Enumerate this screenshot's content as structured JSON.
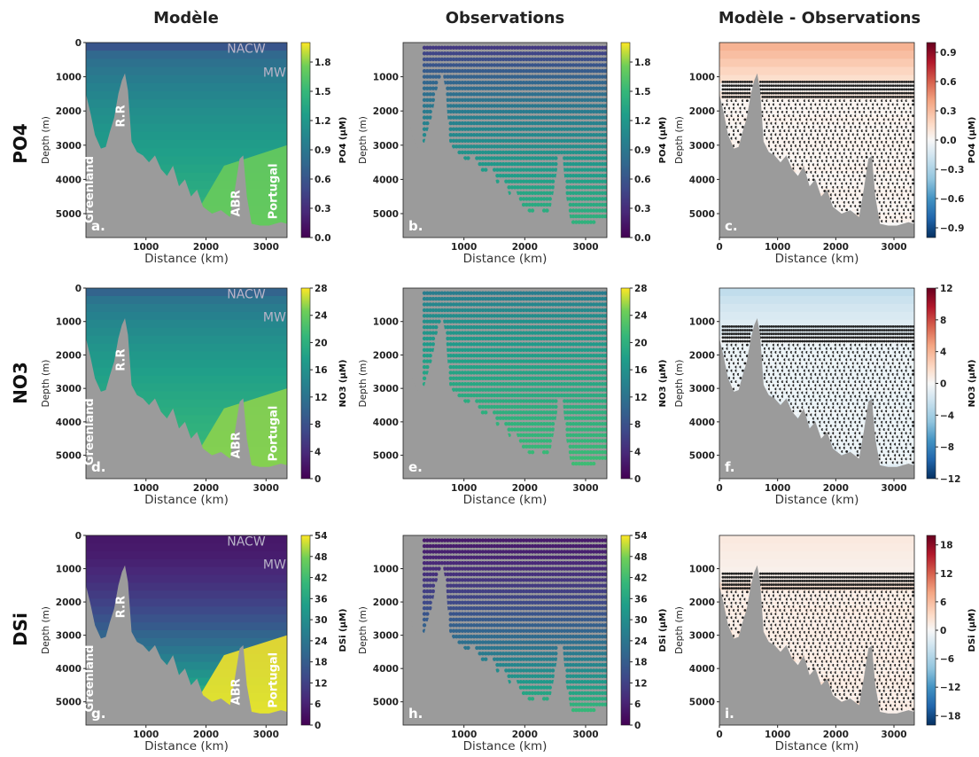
{
  "column_titles": [
    "Modèle",
    "Observations",
    "Modèle - Observations"
  ],
  "row_titles": [
    "PO4",
    "NO3",
    "DSi"
  ],
  "axes": {
    "xlabel": "Distance (km)",
    "ylabel": "Depth (m)",
    "ylabel_clipped": "Depth (m)",
    "xticks": [
      "1000",
      "2000",
      "3000"
    ],
    "xticks_with_zero": [
      "0",
      "1000",
      "2000",
      "3000"
    ],
    "yticks": [
      "0",
      "1000",
      "2000",
      "3000",
      "4000",
      "5000"
    ],
    "yticks_obs": [
      "1000",
      "2000",
      "3000",
      "4000",
      "5000"
    ],
    "yticks_diff": [
      "1000",
      "2000",
      "3000",
      "4000",
      "5000"
    ]
  },
  "topography_labels": [
    "Greenland",
    "R.R",
    "ABR",
    "Portugal"
  ],
  "water_mass_labels": [
    "NACW",
    "MW"
  ],
  "panel_letters": [
    "a.",
    "b.",
    "c.",
    "d.",
    "e.",
    "f.",
    "g.",
    "h.",
    "i."
  ],
  "colors": {
    "land": "#9b9b9b",
    "viridis": [
      "#440154",
      "#3b528b",
      "#21918c",
      "#5ec962",
      "#fde725"
    ],
    "rdbu": [
      "#053061",
      "#2166ac",
      "#4393c3",
      "#92c5de",
      "#d1e5f0",
      "#f7f7f7",
      "#fddbc7",
      "#f4a582",
      "#d6604d",
      "#b2182b",
      "#67001f"
    ],
    "obs_missing_points": "#222222"
  },
  "chart_data": [
    {
      "panel": "a.",
      "type": "heatmap",
      "title": "",
      "variable": "PO4",
      "source": "Modèle",
      "xlabel": "Distance (km)",
      "ylabel": "Depth (m)",
      "xlim": [
        0,
        3350
      ],
      "ylim": [
        5700,
        0
      ],
      "colorbar": {
        "label": "PO4 (µM)",
        "ticks": [
          "0.0",
          "0.3",
          "0.6",
          "0.9",
          "1.2",
          "1.5",
          "1.8"
        ],
        "range": [
          0.0,
          2.0
        ],
        "cmap": "viridis"
      },
      "surface_value": 0.6,
      "deep_value": 1.5
    },
    {
      "panel": "b.",
      "type": "scatter",
      "variable": "PO4",
      "source": "Observations",
      "xlabel": "Distance (km)",
      "ylabel": "Depth (m)",
      "xlim": [
        0,
        3350
      ],
      "ylim": [
        5700,
        0
      ],
      "colorbar": {
        "label": "PO4 (µM)",
        "ticks": [
          "0.0",
          "0.3",
          "0.6",
          "0.9",
          "1.2",
          "1.5",
          "1.8"
        ],
        "range": [
          0.0,
          2.0
        ],
        "cmap": "viridis"
      },
      "surface_value": 0.2,
      "deep_value": 1.5
    },
    {
      "panel": "c.",
      "type": "heatmap",
      "variable": "PO4",
      "source": "Modèle - Observations",
      "xlabel": "Distance (km)",
      "ylabel": "Depth (m)",
      "xlim": [
        0,
        3350
      ],
      "ylim": [
        5700,
        0
      ],
      "colorbar": {
        "label": "PO4 (µM)",
        "ticks": [
          "−0.9",
          "−0.6",
          "−0.3",
          "0.0",
          "0.3",
          "0.6",
          "0.9"
        ],
        "range": [
          -1.0,
          1.0
        ],
        "cmap": "RdBu_r"
      },
      "surface_value": 0.35,
      "deep_value": 0.05
    },
    {
      "panel": "d.",
      "type": "heatmap",
      "variable": "NO3",
      "source": "Modèle",
      "xlabel": "Distance (km)",
      "ylabel": "Depth (m)",
      "xlim": [
        0,
        3350
      ],
      "ylim": [
        5700,
        0
      ],
      "colorbar": {
        "label": "NO3 (µM)",
        "ticks": [
          "0",
          "4",
          "8",
          "12",
          "16",
          "20",
          "24",
          "28"
        ],
        "range": [
          0,
          28
        ],
        "cmap": "viridis"
      },
      "surface_value": 10,
      "deep_value": 22
    },
    {
      "panel": "e.",
      "type": "scatter",
      "variable": "NO3",
      "source": "Observations",
      "xlabel": "Distance (km)",
      "ylabel": "Depth (m)",
      "xlim": [
        0,
        3350
      ],
      "ylim": [
        5700,
        0
      ],
      "colorbar": {
        "label": "NO3 (µM)",
        "ticks": [
          "0",
          "4",
          "8",
          "12",
          "16",
          "20",
          "24",
          "28"
        ],
        "range": [
          0,
          28
        ],
        "cmap": "viridis"
      },
      "surface_value": 12,
      "deep_value": 22
    },
    {
      "panel": "f.",
      "type": "heatmap",
      "variable": "NO3",
      "source": "Modèle - Observations",
      "xlabel": "Distance (km)",
      "ylabel": "Depth (m)",
      "xlim": [
        0,
        3350
      ],
      "ylim": [
        5700,
        0
      ],
      "colorbar": {
        "label": "NO3 (µM)",
        "ticks": [
          "−12",
          "−8",
          "−4",
          "0",
          "4",
          "8",
          "12"
        ],
        "range": [
          -12,
          12
        ],
        "cmap": "RdBu_r"
      },
      "surface_value": -3,
      "deep_value": -1
    },
    {
      "panel": "g.",
      "type": "heatmap",
      "variable": "DSi",
      "source": "Modèle",
      "xlabel": "Distance (km)",
      "ylabel": "Depth (m)",
      "xlim": [
        0,
        3350
      ],
      "ylim": [
        5700,
        0
      ],
      "colorbar": {
        "label": "DSi (µM)",
        "ticks": [
          "0",
          "6",
          "12",
          "18",
          "24",
          "30",
          "36",
          "42",
          "48",
          "54"
        ],
        "range": [
          0,
          54
        ],
        "cmap": "viridis"
      },
      "surface_value": 4,
      "deep_value": 48
    },
    {
      "panel": "h.",
      "type": "scatter",
      "variable": "DSi",
      "source": "Observations",
      "xlabel": "Distance (km)",
      "ylabel": "Depth (m)",
      "xlim": [
        0,
        3350
      ],
      "ylim": [
        5700,
        0
      ],
      "colorbar": {
        "label": "DSi (µM)",
        "ticks": [
          "0",
          "6",
          "12",
          "18",
          "24",
          "30",
          "36",
          "42",
          "48",
          "54"
        ],
        "range": [
          0,
          54
        ],
        "cmap": "viridis"
      },
      "surface_value": 4,
      "deep_value": 45
    },
    {
      "panel": "i.",
      "type": "heatmap",
      "variable": "DSi",
      "source": "Modèle - Observations",
      "xlabel": "Distance (km)",
      "ylabel": "Depth (m)",
      "xlim": [
        0,
        3350
      ],
      "ylim": [
        5700,
        0
      ],
      "colorbar": {
        "label": "DSi (µM)",
        "ticks": [
          "−18",
          "−12",
          "−6",
          "0",
          "6",
          "12",
          "18"
        ],
        "range": [
          -20,
          20
        ],
        "cmap": "RdBu_r"
      },
      "surface_value": 2,
      "deep_value": 2
    }
  ]
}
